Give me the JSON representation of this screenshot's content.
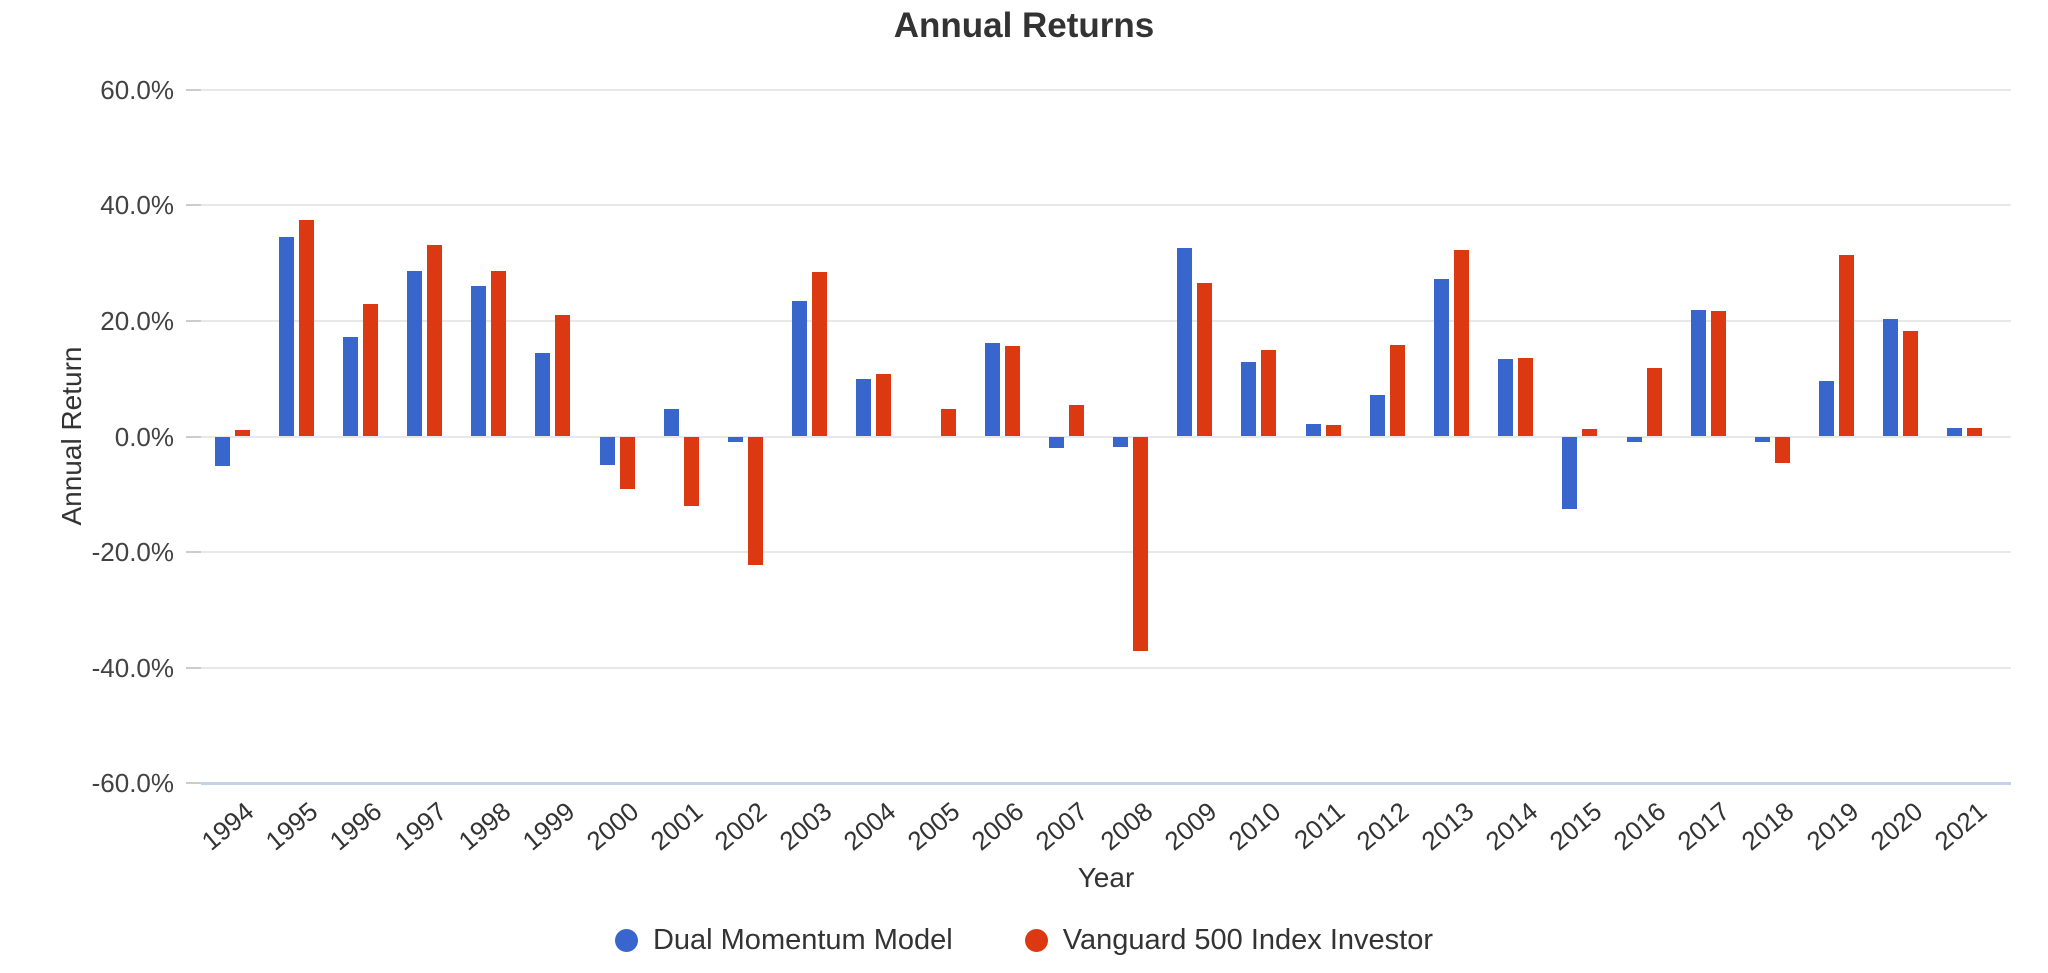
{
  "chart": {
    "title": "Annual Returns",
    "x_axis": {
      "title": "Year"
    },
    "y_axis": {
      "title": "Annual Return",
      "tick_values": [
        60,
        40,
        20,
        0,
        -20,
        -40,
        -60
      ],
      "tick_labels": [
        "60.0%",
        "40.0%",
        "20.0%",
        "0.0%",
        "-20.0%",
        "-40.0%",
        "-60.0%"
      ]
    }
  },
  "chart_data": {
    "type": "bar",
    "title": "Annual Returns",
    "xlabel": "Year",
    "ylabel": "Annual Return",
    "ylim": [
      -60,
      60
    ],
    "ytick_step": 20,
    "ytick_format": "percent_one_decimal",
    "grid": true,
    "legend_position": "bottom",
    "background": "#ffffff",
    "categories": [
      "1994",
      "1995",
      "1996",
      "1997",
      "1998",
      "1999",
      "2000",
      "2001",
      "2002",
      "2003",
      "2004",
      "2005",
      "2006",
      "2007",
      "2008",
      "2009",
      "2010",
      "2011",
      "2012",
      "2013",
      "2014",
      "2015",
      "2016",
      "2017",
      "2018",
      "2019",
      "2020",
      "2021"
    ],
    "series": [
      {
        "name": "Dual Momentum Model",
        "color": "#3866CC",
        "values": [
          -5.1,
          34.5,
          17.2,
          28.6,
          26.0,
          14.5,
          -5.0,
          4.8,
          -1.0,
          23.4,
          10.0,
          0.0,
          16.1,
          -2.0,
          -1.9,
          32.6,
          12.8,
          2.2,
          7.2,
          27.3,
          13.4,
          -12.6,
          -1.0,
          21.8,
          -0.9,
          9.6,
          20.3,
          1.5
        ]
      },
      {
        "name": "Vanguard 500 Index Investor",
        "color": "#DC3912",
        "values": [
          1.18,
          37.45,
          22.88,
          33.19,
          28.62,
          21.07,
          -9.06,
          -12.02,
          -22.15,
          28.5,
          10.74,
          4.77,
          15.64,
          5.39,
          -37.02,
          26.49,
          14.91,
          1.97,
          15.82,
          32.18,
          13.51,
          1.25,
          11.82,
          21.67,
          -4.52,
          31.33,
          18.25,
          1.55
        ]
      }
    ]
  }
}
